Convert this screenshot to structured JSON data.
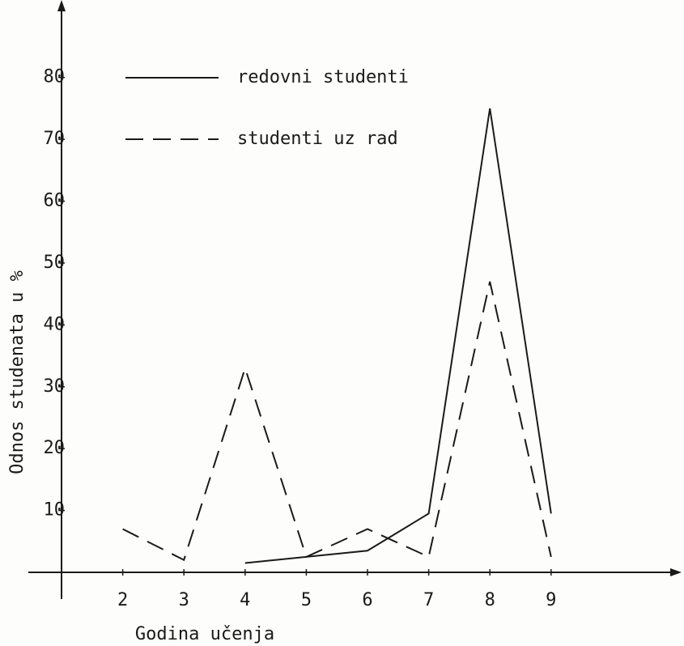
{
  "chart_data": {
    "type": "line",
    "xlabel": "Godina učenja",
    "ylabel": "Odnos studenata u %",
    "x": [
      2,
      3,
      4,
      5,
      6,
      7,
      8,
      9
    ],
    "series": [
      {
        "name": "redovni studenti",
        "color": "#1a1a1a",
        "style": "solid",
        "values": [
          null,
          null,
          1.5,
          2.5,
          3.5,
          9.5,
          75,
          9.5
        ]
      },
      {
        "name": "studenti uz rad",
        "color": "#1a1a1a",
        "style": "dashed",
        "values": [
          7,
          2,
          33,
          2.5,
          7,
          2.5,
          47,
          2.5
        ]
      }
    ],
    "xlim": [
      1,
      11
    ],
    "xticks": [
      2,
      3,
      4,
      5,
      6,
      7,
      8,
      9
    ],
    "ylim": [
      0,
      92
    ],
    "yticks": [
      10,
      20,
      30,
      40,
      50,
      60,
      70,
      80
    ]
  }
}
